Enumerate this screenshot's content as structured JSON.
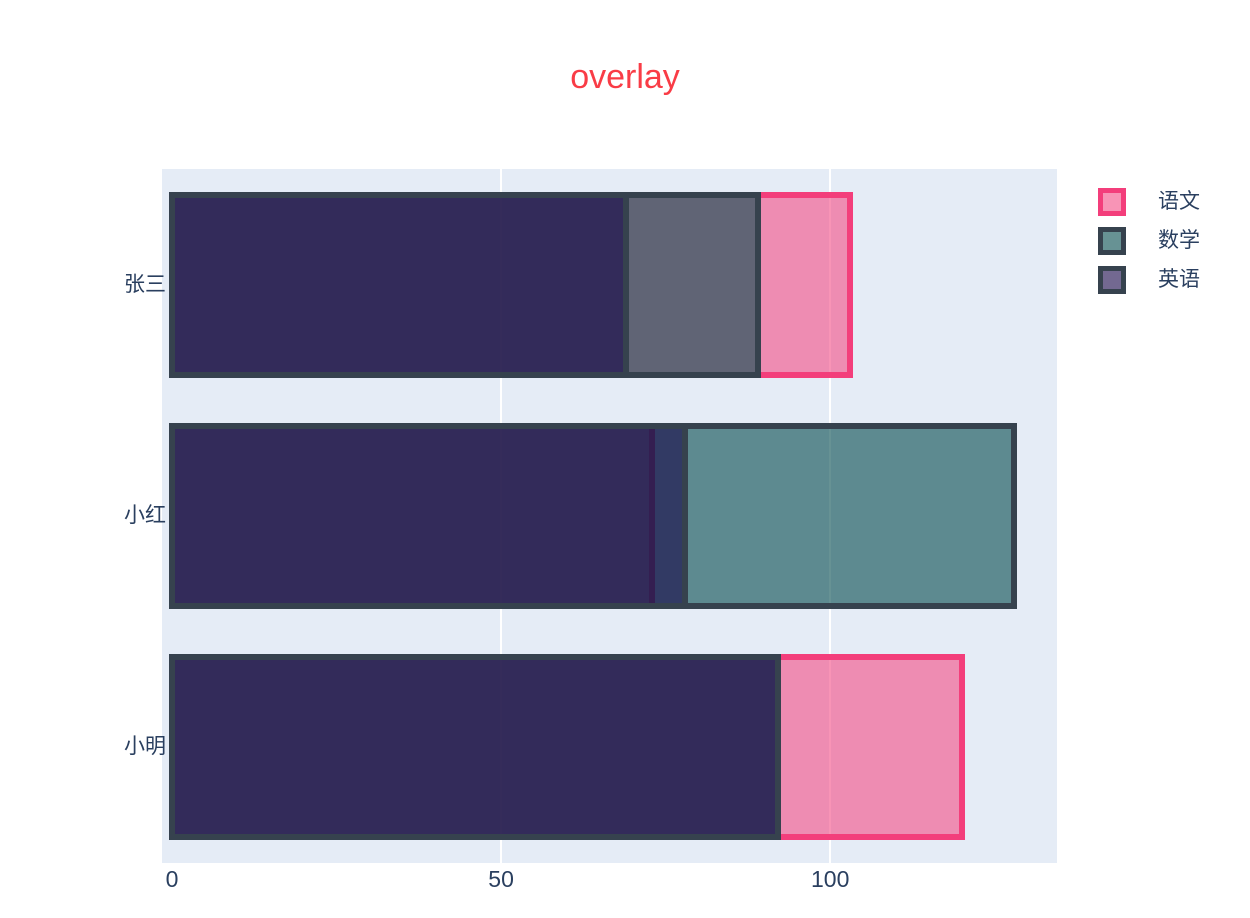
{
  "title": {
    "text": "overlay",
    "color": "#F93C46"
  },
  "colors": {
    "plot_background": "#E5ECF6",
    "paper_background": "#FFFFFF",
    "gridline": "#FFFFFF",
    "axis_text": "#2A3F5F"
  },
  "legend": {
    "items": [
      {
        "label": "语文",
        "line_color": "#F33E7B",
        "fill_rgba": "rgba(244,76,134,0.6)"
      },
      {
        "label": "数学",
        "line_color": "#36424E",
        "fill_rgba": "rgba(2,74,76,0.6)"
      },
      {
        "label": "英语",
        "line_color": "#36424E",
        "fill_rgba": "rgba(22,5,71,0.6)"
      }
    ]
  },
  "chart_data": {
    "type": "bar",
    "orientation": "horizontal",
    "barmode": "overlay",
    "title": "overlay",
    "categories": [
      "张三",
      "小红",
      "小明"
    ],
    "series": [
      {
        "name": "语文",
        "values": [
          103,
          73,
          120
        ],
        "marker_color": "#F44C86",
        "fill_rgba": "rgba(244,76,134,0.6)",
        "line_color": "#F33E7B",
        "opacity": 0.6
      },
      {
        "name": "数学",
        "values": [
          89,
          128,
          92
        ],
        "marker_color": "#024A4C",
        "fill_rgba": "rgba(2,74,76,0.6)",
        "line_color": "#36424E",
        "opacity": 0.6
      },
      {
        "name": "英语",
        "values": [
          69,
          78,
          92
        ],
        "marker_color": "#160547",
        "fill_rgba": "rgba(22,5,71,0.6)",
        "line_color": "#36424E",
        "opacity": 0.6
      }
    ],
    "x_ticks": [
      0,
      50,
      100
    ],
    "x_range": [
      -1.6,
      134.6
    ],
    "y_axis_labels": [
      "张三",
      "小红",
      "小明"
    ],
    "grid": true,
    "plot_bg_color": "#E5ECF6",
    "grid_color": "#FFFFFF",
    "legend_position": "top-right",
    "axis_text_color": "#2A3F5F"
  }
}
